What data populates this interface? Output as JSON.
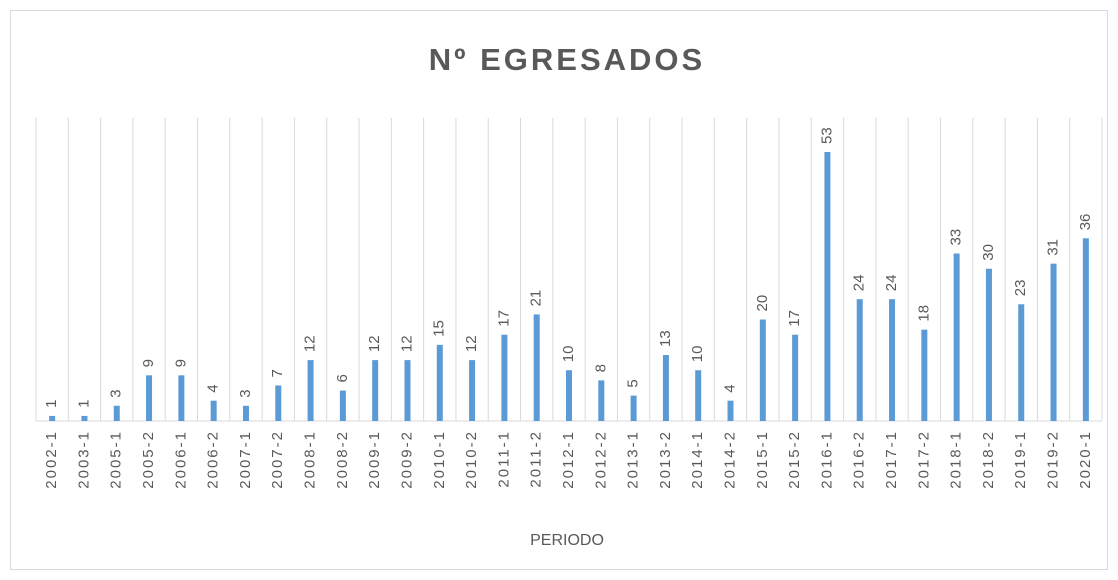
{
  "chart_data": {
    "type": "bar",
    "title": "Nº EGRESADOS",
    "x_label": "PERIODO",
    "categories": [
      "2002-1",
      "2003-1",
      "2005-1",
      "2005-2",
      "2006-1",
      "2006-2",
      "2007-1",
      "2007-2",
      "2008-1",
      "2008-2",
      "2009-1",
      "2009-2",
      "2010-1",
      "2010-2",
      "2011-1",
      "2011-2",
      "2012-1",
      "2012-2",
      "2013-1",
      "2013-2",
      "2014-1",
      "2014-2",
      "2015-1",
      "2015-2",
      "2016-1",
      "2016-2",
      "2017-1",
      "2017-2",
      "2018-1",
      "2018-2",
      "2019-1",
      "2019-2",
      "2020-1"
    ],
    "values": [
      1,
      1,
      3,
      9,
      9,
      4,
      3,
      7,
      12,
      6,
      12,
      12,
      15,
      12,
      17,
      21,
      10,
      8,
      5,
      13,
      10,
      4,
      20,
      17,
      53,
      24,
      24,
      18,
      33,
      30,
      23,
      31,
      36
    ],
    "color": "#5b9bd5",
    "grid": true
  }
}
